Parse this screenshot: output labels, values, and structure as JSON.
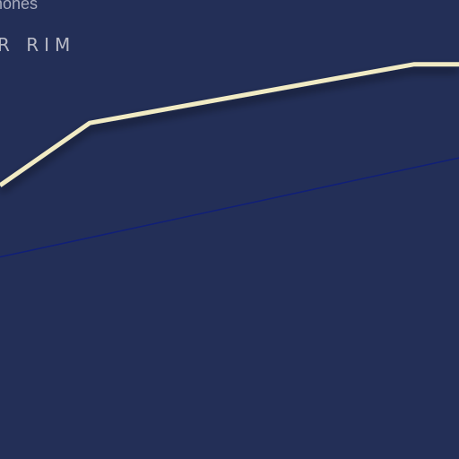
{
  "header": {
    "partial_title": "rmones",
    "section_label": "R RIM"
  },
  "colors": {
    "background": "#232f57",
    "primary_line": "#f1ebc4",
    "secondary_line": "#101f78",
    "label_text": "#b8bac6"
  },
  "chart_data": {
    "type": "line",
    "grid": false,
    "legend": "none",
    "series": [
      {
        "color": "#f1ebc4",
        "x": [
          0,
          100,
          462,
          512
        ],
        "y": [
          19.5,
          36.5,
          52.5,
          52.5
        ]
      },
      {
        "color": "#101f78",
        "x": [
          0,
          512
        ],
        "y": [
          0,
          27
        ]
      }
    ],
    "xlim": [
      0,
      512
    ],
    "ylim": [
      -55,
      70
    ]
  }
}
